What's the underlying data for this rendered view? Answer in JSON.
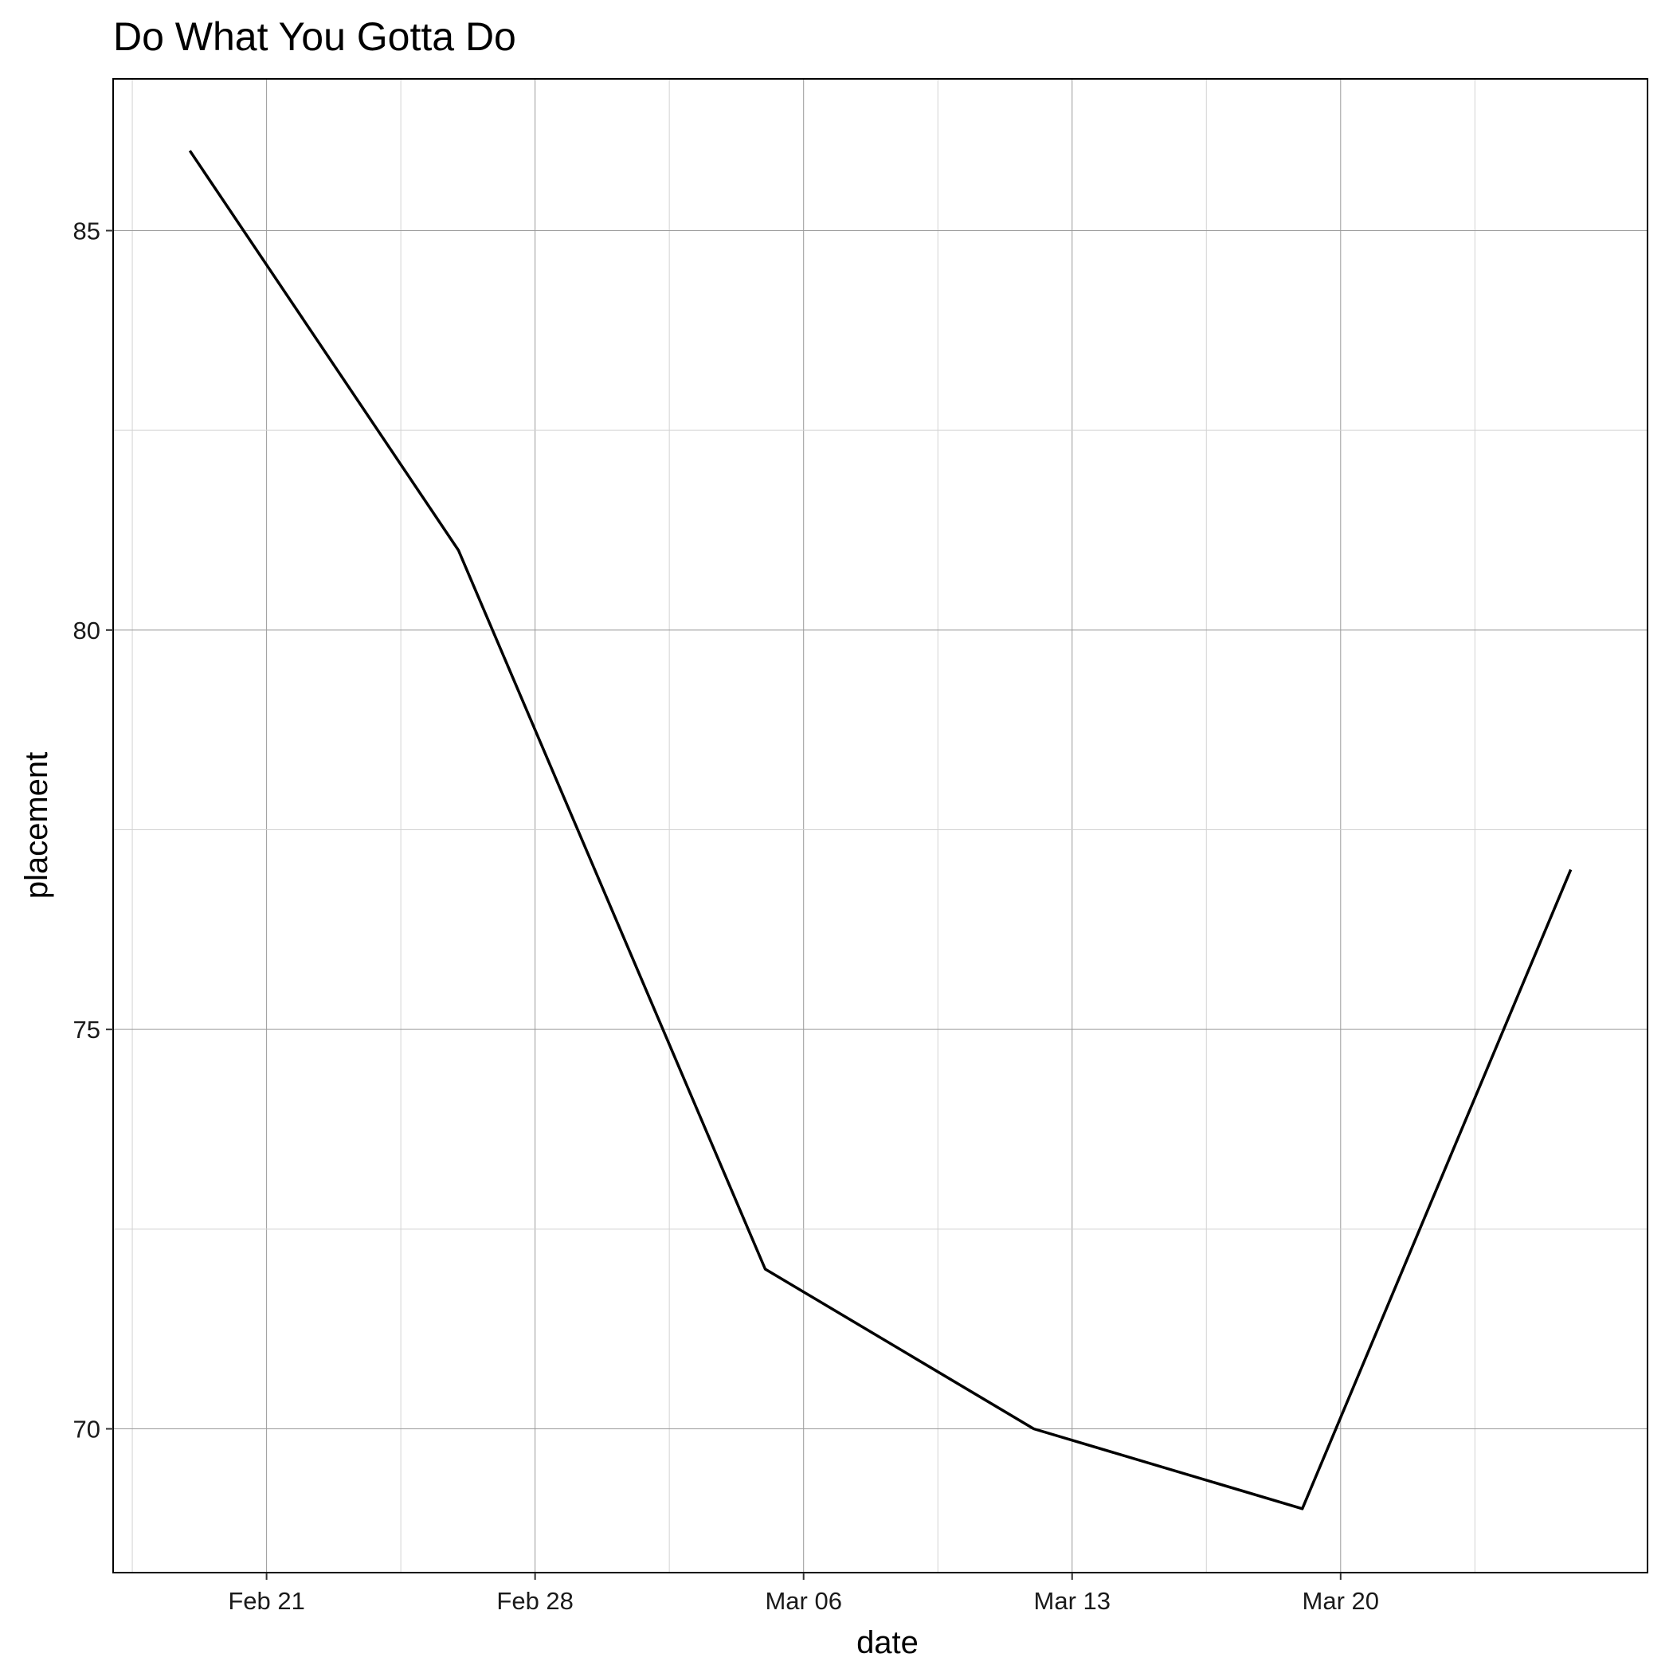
{
  "chart_data": {
    "type": "line",
    "title": "Do What You Gotta Do",
    "xlabel": "date",
    "ylabel": "placement",
    "x": [
      "Feb 19",
      "Feb 26",
      "Mar 05",
      "Mar 12",
      "Mar 19",
      "Mar 26"
    ],
    "series": [
      {
        "values": [
          86,
          81,
          72,
          70,
          69,
          77
        ]
      }
    ],
    "x_ticks": [
      "Feb 21",
      "Feb 28",
      "Mar 06",
      "Mar 13",
      "Mar 20"
    ],
    "y_ticks": [
      70,
      75,
      80,
      85
    ],
    "xlim": [
      "Feb 17",
      "Mar 28"
    ],
    "ylim": [
      68.2,
      86.9
    ],
    "grid": true,
    "legend": "none",
    "line_color": "#000000"
  }
}
